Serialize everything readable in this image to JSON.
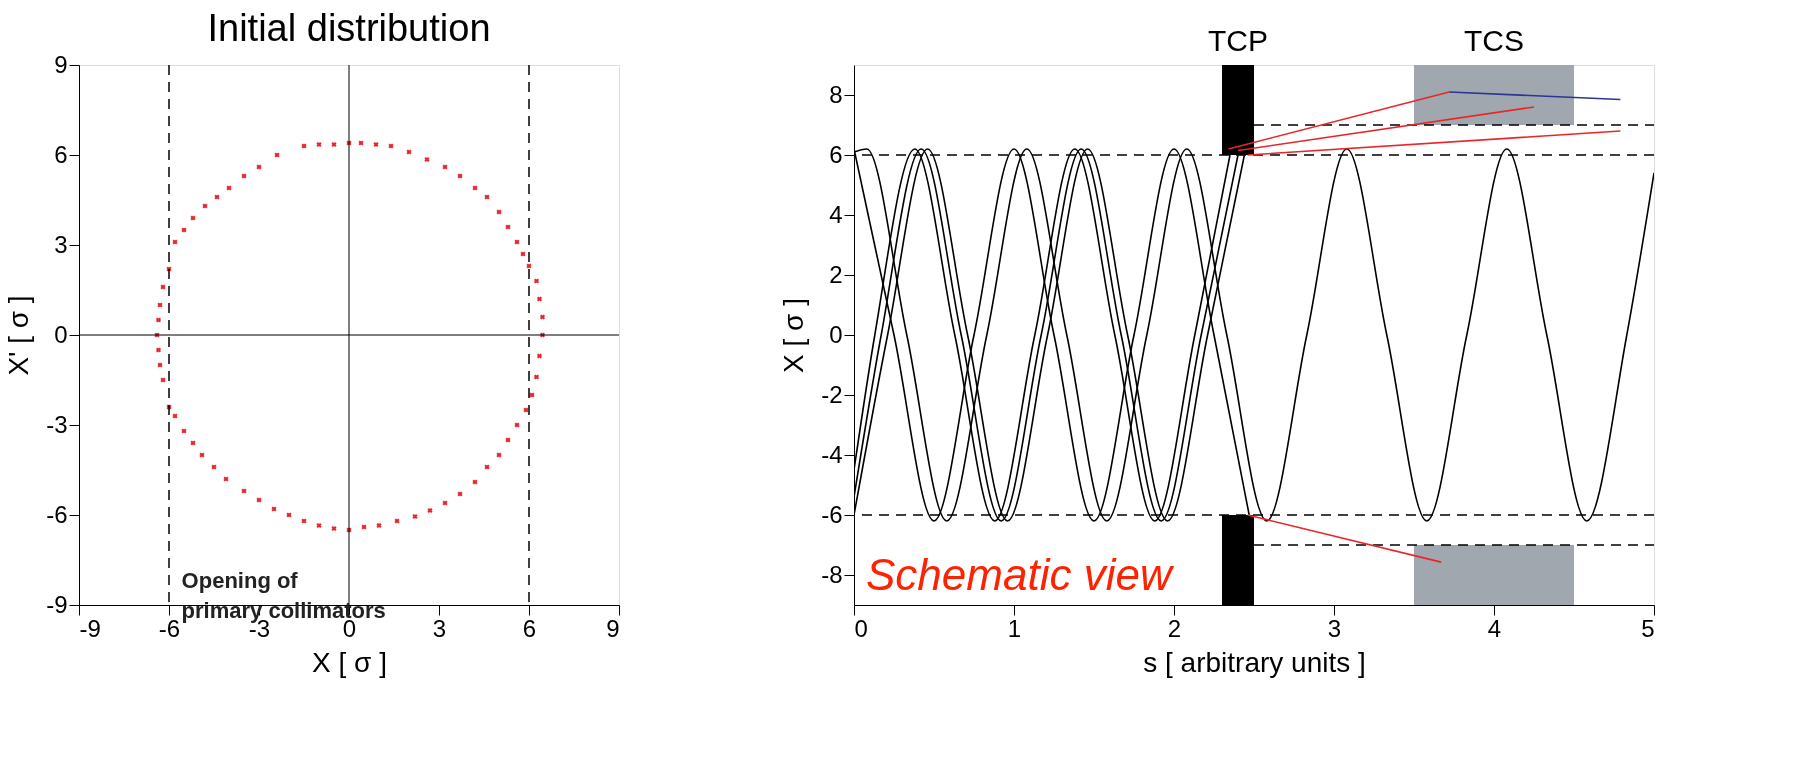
{
  "chart_data": [
    {
      "type": "scatter",
      "title": "Initial distribution",
      "xlabel": "X [ σ ]",
      "ylabel": "X' [ σ ]",
      "marker": "cross",
      "grid": false,
      "xlim": [
        -9,
        9
      ],
      "ylim": [
        -9,
        9
      ],
      "xticks": [
        -9,
        -6,
        -3,
        0,
        3,
        6,
        9
      ],
      "yticks": [
        -9,
        -6,
        -3,
        0,
        3,
        6,
        9
      ],
      "series": [
        {
          "color": "#e8262a",
          "x": [
            0,
            -0.5,
            -1,
            -1.5,
            -2.4,
            -3,
            -3.5,
            -4.0,
            -4.4,
            -4.8,
            -5.2,
            -5.5,
            -5.8,
            -6.0,
            -6.2,
            -6.3,
            -6.35,
            -6.4,
            -6.35,
            -6.3,
            -6.2,
            -6.0,
            -5.8,
            -5.5,
            -5.2,
            -4.9,
            -4.5,
            -4.1,
            -3.5,
            -3.0,
            -2.5,
            -2,
            -1.5,
            -1.0,
            -0.5,
            0,
            0.5,
            1.0,
            1.6,
            2.2,
            2.7,
            3.2,
            3.7,
            4.2,
            4.6,
            5.0,
            5.3,
            5.6,
            5.9,
            6.1,
            6.25,
            6.35,
            6.45,
            6.45,
            6.35,
            6.25,
            6.0,
            5.8,
            5.6,
            5.3,
            5.0,
            4.6,
            4.2,
            3.7,
            3.2,
            2.6,
            2.0,
            1.4,
            0.9,
            0.4
          ],
          "values": [
            6.4,
            6.35,
            6.35,
            6.3,
            6.0,
            5.6,
            5.3,
            4.9,
            4.6,
            4.3,
            3.9,
            3.5,
            3.1,
            2.2,
            1.6,
            1.0,
            0.5,
            0,
            -0.5,
            -1.0,
            -1.5,
            -2.4,
            -2.7,
            -3.2,
            -3.6,
            -4.0,
            -4.4,
            -4.8,
            -5.2,
            -5.5,
            -5.8,
            -6.0,
            -6.2,
            -6.35,
            -6.45,
            -6.5,
            -6.4,
            -6.35,
            -6.2,
            -6.05,
            -5.85,
            -5.6,
            -5.3,
            -4.9,
            -4.4,
            -4.0,
            -3.5,
            -3.0,
            -2.5,
            -2.0,
            -1.4,
            -0.7,
            0,
            0.6,
            1.2,
            1.8,
            2.3,
            2.7,
            3.1,
            3.6,
            4.1,
            4.6,
            4.9,
            5.3,
            5.6,
            5.85,
            6.1,
            6.3,
            6.35,
            6.4
          ]
        }
      ],
      "ref_lines": [
        {
          "axis": "x",
          "value": -6,
          "line_style": "dashed"
        },
        {
          "axis": "x",
          "value": 6,
          "line_style": "dashed"
        },
        {
          "axis": "x",
          "value": 0,
          "line_style": "solid"
        },
        {
          "axis": "y",
          "value": 0,
          "line_style": "solid"
        }
      ],
      "annotations": [
        "Opening of\nprimary collimators"
      ]
    },
    {
      "type": "line",
      "xlabel": "s [ arbitrary units ]",
      "ylabel": "X [ σ ]",
      "grid": false,
      "xlim": [
        0,
        5
      ],
      "ylim": [
        -9,
        9
      ],
      "xticks": [
        0,
        1,
        2,
        3,
        4,
        5
      ],
      "yticks": [
        -8,
        -6,
        -4,
        -2,
        0,
        2,
        4,
        6,
        8
      ],
      "series": [
        {
          "color": "#000000",
          "x": [
            0,
            0.25,
            0.5,
            0.75,
            1.0,
            1.25,
            1.5,
            1.75,
            2.0,
            2.25,
            2.47
          ],
          "values": [
            6.2,
            0,
            -6.2,
            0,
            6.2,
            0,
            -6.2,
            0,
            6.2,
            0,
            -6.0
          ]
        },
        {
          "color": "#000000",
          "x": [
            0,
            0.08,
            0.33,
            0.58,
            0.83,
            1.08,
            1.33,
            1.58,
            1.83,
            2.08,
            2.33,
            2.58,
            2.83,
            3.08,
            3.33,
            3.58,
            3.83,
            4.08,
            4.33,
            4.58,
            4.83,
            5.0
          ],
          "values": [
            6.1,
            6.2,
            0,
            -6.2,
            0,
            6.2,
            0,
            -6.2,
            0,
            6.2,
            0,
            -6.2,
            0,
            6.2,
            0,
            -6.2,
            0,
            6.2,
            0,
            -6.2,
            0,
            5.4
          ]
        },
        {
          "color": "#000000",
          "x": [
            0,
            0.13,
            0.38,
            0.63,
            0.88,
            1.13,
            1.38,
            1.63,
            1.88,
            2.13,
            2.35
          ],
          "values": [
            -4.5,
            0,
            6.2,
            0,
            -6.2,
            0,
            6.2,
            0,
            -6.2,
            0,
            6.0
          ]
        },
        {
          "color": "#000000",
          "x": [
            0,
            0.17,
            0.42,
            0.67,
            0.92,
            1.17,
            1.42,
            1.67,
            1.92,
            2.17,
            2.4
          ],
          "values": [
            -5.4,
            0,
            6.2,
            0,
            -6.2,
            0,
            6.2,
            0,
            -6.2,
            0,
            6.0
          ]
        },
        {
          "color": "#000000",
          "x": [
            0,
            0.21,
            0.46,
            0.71,
            0.96,
            1.21,
            1.46,
            1.71,
            1.96,
            2.21,
            2.44
          ],
          "values": [
            -6.0,
            0,
            6.2,
            0,
            -6.2,
            0,
            6.2,
            0,
            -6.2,
            0,
            6.0
          ]
        },
        {
          "type": "histogram",
          "color": "#000000",
          "bins": [
            2.3,
            2.5
          ],
          "base": [
            6
          ],
          "values": [
            3
          ]
        },
        {
          "type": "histogram",
          "color": "#000000",
          "bins": [
            2.3,
            2.5
          ],
          "base": [
            -9
          ],
          "values": [
            3
          ]
        },
        {
          "type": "histogram",
          "color": "#a0a7ae",
          "bins": [
            3.5,
            4.5
          ],
          "base": [
            7
          ],
          "values": [
            2
          ]
        },
        {
          "type": "histogram",
          "color": "#a0a7ae",
          "bins": [
            3.5,
            4.5
          ],
          "base": [
            -9
          ],
          "values": [
            2
          ]
        },
        {
          "color": "#000000",
          "line_style": "dashed",
          "x": [
            2.5,
            5.0
          ],
          "values": [
            7,
            7
          ]
        },
        {
          "color": "#000000",
          "line_style": "dashed",
          "x": [
            2.5,
            5.0
          ],
          "values": [
            -7,
            -7
          ]
        },
        {
          "color": "#e8262a",
          "x": [
            2.34,
            3.72
          ],
          "values": [
            6.2,
            8.1
          ]
        },
        {
          "color": "#e8262a",
          "x": [
            2.4,
            4.25
          ],
          "values": [
            6.15,
            7.6
          ]
        },
        {
          "color": "#e8262a",
          "x": [
            2.46,
            4.79
          ],
          "values": [
            6.0,
            6.8
          ]
        },
        {
          "color": "#2b3596",
          "x": [
            3.72,
            4.79
          ],
          "values": [
            8.1,
            7.85
          ]
        },
        {
          "color": "#e8262a",
          "x": [
            2.46,
            3.67
          ],
          "values": [
            -6.0,
            -7.57
          ]
        }
      ],
      "ref_lines": [
        {
          "axis": "y",
          "value": 6,
          "line_style": "dashed"
        },
        {
          "axis": "y",
          "value": -6,
          "line_style": "dashed"
        }
      ],
      "annotations": [
        {
          "text": "TCP",
          "x": 2.4,
          "y": 9
        },
        {
          "text": "TCS",
          "x": 4.0,
          "y": 9
        },
        "Schematic view"
      ]
    }
  ]
}
